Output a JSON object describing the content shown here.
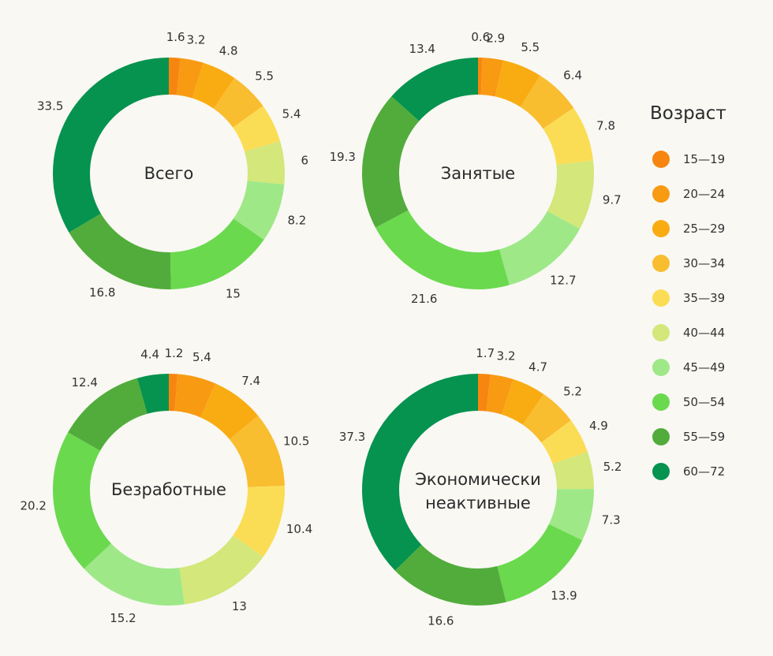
{
  "legend": {
    "title": "Возраст",
    "items": [
      {
        "label": "15—19",
        "color": "#f6860f"
      },
      {
        "label": "20—24",
        "color": "#f89a12"
      },
      {
        "label": "25—29",
        "color": "#f9ac12"
      },
      {
        "label": "30—34",
        "color": "#f9bd30"
      },
      {
        "label": "35—39",
        "color": "#fbdd55"
      },
      {
        "label": "40—44",
        "color": "#d3e77a"
      },
      {
        "label": "45—49",
        "color": "#9ee888"
      },
      {
        "label": "50—54",
        "color": "#6ad94e"
      },
      {
        "label": "55—59",
        "color": "#52ac3b"
      },
      {
        "label": "60—72",
        "color": "#05934f"
      }
    ]
  },
  "chart_data": [
    {
      "type": "pie",
      "title": "Всего",
      "categories": [
        "15—19",
        "20—24",
        "25—29",
        "30—34",
        "35—39",
        "40—44",
        "45—49",
        "50—54",
        "55—59",
        "60—72"
      ],
      "values": [
        1.6,
        3.2,
        4.8,
        5.5,
        5.4,
        6,
        8.2,
        15,
        16.8,
        33.5
      ],
      "labels": [
        "1.6",
        "3.2",
        "4.8",
        "5.5",
        "5.4",
        "6",
        "8.2",
        "15",
        "16.8",
        "33.5"
      ]
    },
    {
      "type": "pie",
      "title": "Занятые",
      "categories": [
        "15—19",
        "20—24",
        "25—29",
        "30—34",
        "35—39",
        "40—44",
        "45—49",
        "50—54",
        "55—59",
        "60—72"
      ],
      "values": [
        0.6,
        2.9,
        5.5,
        6.4,
        7.8,
        9.7,
        12.7,
        21.6,
        19.3,
        13.4
      ],
      "labels": [
        "0.6",
        "2.9",
        "5.5",
        "6.4",
        "7.8",
        "9.7",
        "12.7",
        "21.6",
        "19.3",
        "13.4"
      ]
    },
    {
      "type": "pie",
      "title": "Безработные",
      "categories": [
        "15—19",
        "20—24",
        "25—29",
        "30—34",
        "35—39",
        "40—44",
        "45—49",
        "50—54",
        "55—59",
        "60—72"
      ],
      "values": [
        1.2,
        5.4,
        7.4,
        10.5,
        10.4,
        13,
        15.2,
        20.2,
        12.4,
        4.4
      ],
      "labels": [
        "1.2",
        "5.4",
        "7.4",
        "10.5",
        "10.4",
        "13",
        "15.2",
        "20.2",
        "12.4",
        "4.4"
      ]
    },
    {
      "type": "pie",
      "title": "Экономически неактивные",
      "title_lines": [
        "Экономически",
        "неактивные"
      ],
      "categories": [
        "15—19",
        "20—24",
        "25—29",
        "30—34",
        "35—39",
        "40—44",
        "45—49",
        "50—54",
        "55—59",
        "60—72"
      ],
      "values": [
        1.7,
        3.2,
        4.7,
        5.2,
        4.9,
        5.2,
        7.3,
        13.9,
        16.6,
        37.3
      ],
      "labels": [
        "1.7",
        "3.2",
        "4.7",
        "5.2",
        "4.9",
        "5.2",
        "7.3",
        "13.9",
        "16.6",
        "37.3"
      ]
    }
  ]
}
